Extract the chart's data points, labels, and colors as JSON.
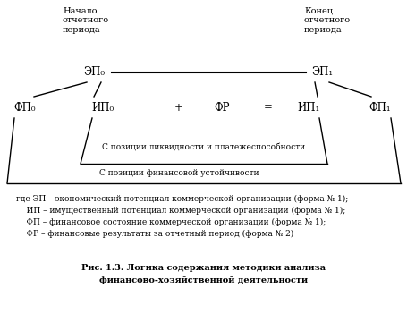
{
  "bg_color": "#ffffff",
  "fig_width": 4.56,
  "fig_height": 3.51,
  "dpi": 100,
  "top_left_label": "Начало\nотчетного\nпериода",
  "top_right_label": "Конец\nотчетного\nпериода",
  "ep0_label": "ЭП₀",
  "ep1_label": "ЭП₁",
  "fp0_label": "ФП₀",
  "ip0_label": "ИП₀",
  "plus_label": "+",
  "fr_label": "ФР",
  "eq_label": "=",
  "ip1_label": "ИП₁",
  "fp1_label": "ФП₁",
  "liquidity_label": "С позиции ликвидности и платежеспособности",
  "stability_label": "С позиции финансовой устойчивости",
  "legend_line1": "где ЭП – экономический потенциал коммерческой организации (форма № 1);",
  "legend_line2": "    ИП – имущественный потенциал коммерческой организации (форма № 1);",
  "legend_line3": "    ФП – финансовое состояние коммерческой организации (форма № 1);",
  "legend_line4": "    ФР – финансовые результаты за отчетный период (форма № 2)",
  "caption_line1": "Рис. 1.3. Логика содержания методики анализа",
  "caption_line2": "финансово-хозяйственной деятельности"
}
